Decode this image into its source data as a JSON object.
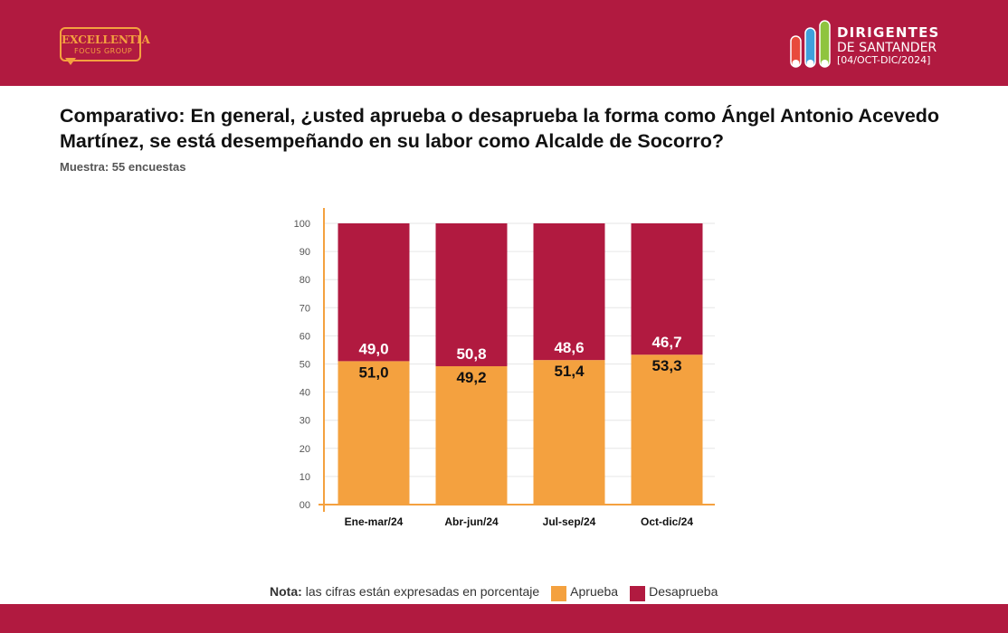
{
  "header": {
    "logo_left": {
      "line1": "EXCELLENTIA",
      "line2": "FOCUS GROUP"
    },
    "logo_right": {
      "line1": "DIRIGENTES",
      "line2": "DE SANTANDER",
      "line3": "[04/OCT-DIC/2024]"
    }
  },
  "title": "Comparativo:  En general, ¿usted aprueba o desaprueba la forma como Ángel Antonio Acevedo Martínez, se está desempeñando en su labor como Alcalde de Socorro?",
  "sample": "Muestra: 55 encuestas",
  "legend": {
    "nota_bold": "Nota:",
    "nota_text": "las cifras están expresadas en porcentaje",
    "aprueba": "Aprueba",
    "desaprueba": "Desaprueba"
  },
  "colors": {
    "aprueba": "#f4a13f",
    "desaprueba": "#b11a40",
    "header": "#b11a40"
  },
  "chart_data": {
    "type": "bar",
    "stacked": true,
    "categories": [
      "Ene-mar/24",
      "Abr-jun/24",
      "Jul-sep/24",
      "Oct-dic/24"
    ],
    "series": [
      {
        "name": "Aprueba",
        "values": [
          51.0,
          49.2,
          51.4,
          53.3
        ],
        "labels": [
          "51,0",
          "49,2",
          "51,4",
          "53,3"
        ]
      },
      {
        "name": "Desaprueba",
        "values": [
          49.0,
          50.8,
          48.6,
          46.7
        ],
        "labels": [
          "49,0",
          "50,8",
          "48,6",
          "46,7"
        ]
      }
    ],
    "yticks": [
      "00",
      "10",
      "20",
      "30",
      "40",
      "50",
      "60",
      "70",
      "80",
      "90",
      "100"
    ],
    "ylim": [
      0,
      100
    ],
    "grid": true,
    "legend_position": "bottom"
  }
}
